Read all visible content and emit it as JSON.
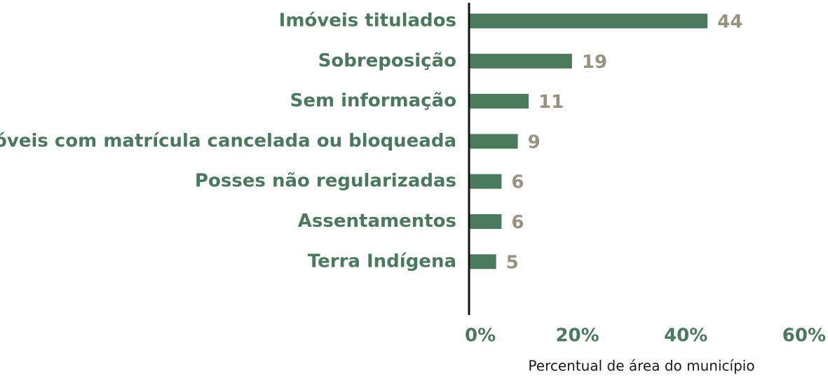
{
  "chart_data": {
    "type": "bar",
    "orientation": "horizontal",
    "categories": [
      "Imóveis titulados",
      "Sobreposição",
      "Sem informação",
      "Imóveis com matrícula cancelada ou bloqueada",
      "Posses não regularizadas",
      "Assentamentos",
      "Terra Indígena"
    ],
    "values": [
      44,
      19,
      11,
      9,
      6,
      6,
      5
    ],
    "value_labels": [
      "44",
      "19",
      "11",
      "9",
      "6",
      "6",
      "5"
    ],
    "title": "",
    "xlabel": "Percentual de área do município",
    "ylabel": "",
    "xlim": [
      0,
      60
    ],
    "x_ticks": [
      0,
      20,
      40,
      60
    ],
    "x_tick_labels": [
      "0%",
      "20%",
      "40%",
      "60%"
    ],
    "grid": false,
    "legend": "none",
    "colors": {
      "bar": "#4a7a5c",
      "category_label": "#4a7a5c",
      "value_label": "#9a927f",
      "tick_label": "#4a7a5c",
      "axis_title": "#1a1a1a",
      "axis_line": "#111111"
    }
  }
}
